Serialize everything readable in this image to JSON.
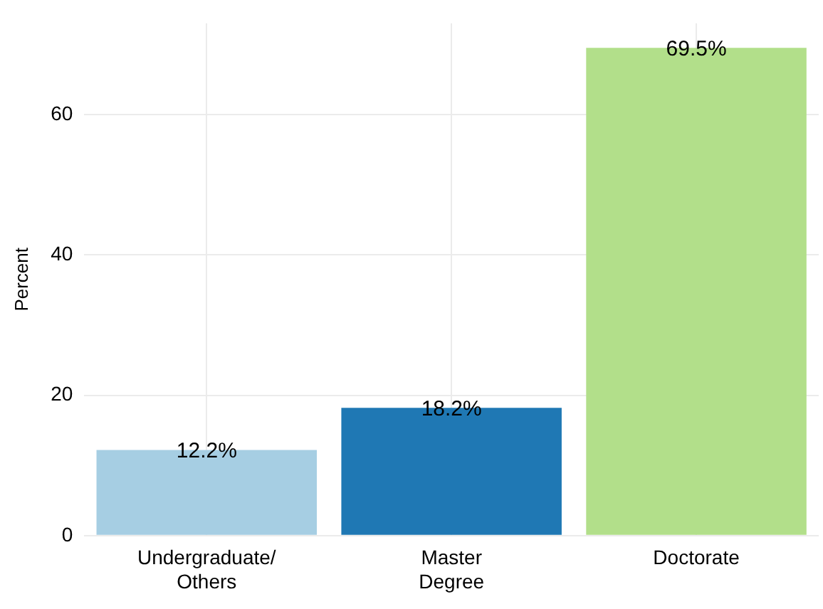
{
  "chart_data": {
    "type": "bar",
    "ylabel": "Percent",
    "categories": [
      "Undergraduate/\nOthers",
      "Master\nDegree",
      "Doctorate"
    ],
    "values": [
      12.2,
      18.2,
      69.5
    ],
    "colors": [
      "#a6cee3",
      "#1f78b4",
      "#b2df8a"
    ],
    "value_labels": [
      "12.2%",
      "18.2%",
      "69.5%"
    ],
    "ylim": [
      0,
      73
    ],
    "yticks": [
      0,
      20,
      40,
      60
    ],
    "grid": true,
    "legend": false
  }
}
